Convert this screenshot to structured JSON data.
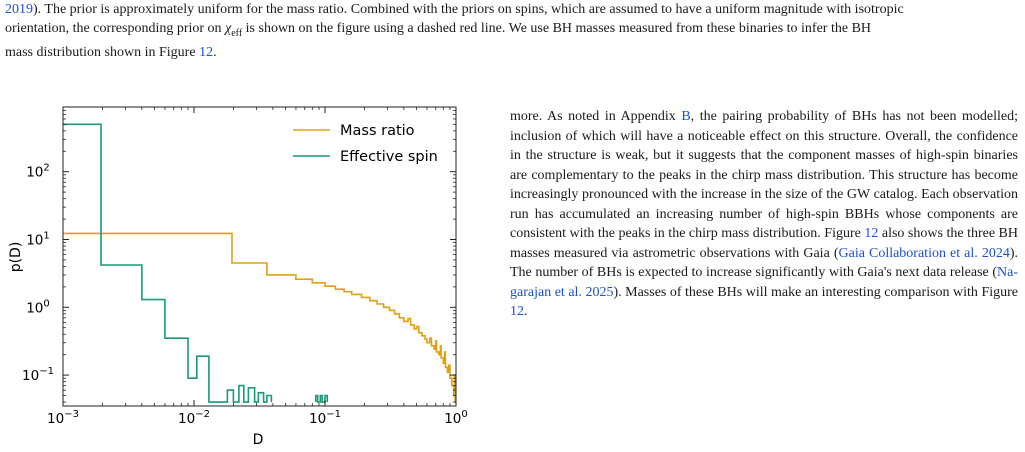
{
  "top_paragraph": {
    "line1_link": "2019",
    "line1_text": "). The prior is approximately uniform for the mass ratio. Combined with the priors on spins, which are assumed to have a uniform magnitude with isotropic",
    "line2_pre": "orientation, the corresponding prior on ",
    "chi_symbol": "χ",
    "chi_sub": "eff",
    "line2_post": " is shown on the figure using a dashed red line. We use BH masses measured from these binaries to infer the BH",
    "line3_pre": "mass distribution shown in Figure ",
    "line3_link": "12",
    "line3_post": "."
  },
  "right_paragraph": {
    "seg1": "more. As noted in Appendix ",
    "link_appendix": "B",
    "seg2": ", the pairing probability of BHs has not been modelled; inclusion of which will have a noticeable effect on this structure. Overall, the confidence in the structure is weak, but it suggests that the component masses of high-spin binaries are complementary to the peaks in the chirp mass distribution. This structure has become increasingly pronounced with the increase in the size of the GW catalog. Each observation run has accumulated an increasing number of high-spin BBHs whose components are consistent with the peaks in the chirp mass distribution. Figure ",
    "link_fig1": "12",
    "seg3": " also shows the three BH masses measured via astrometric observations with Gaia (",
    "link_gaia": "Gaia Collaboration et al. 2024",
    "seg4": "). The number of BHs is expected to increase significantly with Gaia's next data release (",
    "link_nagarajan_a": "Na-",
    "link_nagarajan_b": "garajan et al. 2025",
    "seg5": "). Masses of these BHs will make an interesting comparison with Figure ",
    "link_fig2": "12",
    "seg6": "."
  },
  "chart_data": {
    "type": "line",
    "xlabel": "D",
    "ylabel": "p(D)",
    "xscale": "log",
    "yscale": "log",
    "xlim": [
      0.001,
      1.0
    ],
    "ylim": [
      0.035,
      900
    ],
    "x_ticks": [
      {
        "base": "10",
        "exp": "−3",
        "value": 0.001
      },
      {
        "base": "10",
        "exp": "−2",
        "value": 0.01
      },
      {
        "base": "10",
        "exp": "−1",
        "value": 0.1
      },
      {
        "base": "10",
        "exp": "0",
        "value": 1
      }
    ],
    "y_ticks": [
      {
        "base": "10",
        "exp": "−1",
        "value": 0.1
      },
      {
        "base": "10",
        "exp": "0",
        "value": 1
      },
      {
        "base": "10",
        "exp": "1",
        "value": 10
      },
      {
        "base": "10",
        "exp": "2",
        "value": 100
      }
    ],
    "legend_position": "top-right",
    "series": [
      {
        "name": "Mass ratio",
        "color": "#e1a012",
        "steps": [
          [
            0.001,
            12.3
          ],
          [
            0.0195,
            12.3
          ],
          [
            0.0195,
            4.5
          ],
          [
            0.036,
            4.5
          ],
          [
            0.036,
            3.0
          ],
          [
            0.06,
            3.0
          ],
          [
            0.06,
            2.6
          ],
          [
            0.08,
            2.6
          ],
          [
            0.08,
            2.3
          ],
          [
            0.1,
            2.3
          ],
          [
            0.1,
            2.05
          ],
          [
            0.12,
            2.05
          ],
          [
            0.12,
            1.85
          ],
          [
            0.14,
            1.85
          ],
          [
            0.14,
            1.7
          ],
          [
            0.16,
            1.7
          ],
          [
            0.16,
            1.55
          ],
          [
            0.19,
            1.55
          ],
          [
            0.19,
            1.4
          ],
          [
            0.22,
            1.4
          ],
          [
            0.22,
            1.25
          ],
          [
            0.25,
            1.25
          ],
          [
            0.25,
            1.12
          ],
          [
            0.28,
            1.12
          ],
          [
            0.28,
            1.0
          ],
          [
            0.31,
            1.0
          ],
          [
            0.31,
            0.9
          ],
          [
            0.34,
            0.9
          ],
          [
            0.34,
            0.8
          ],
          [
            0.37,
            0.8
          ],
          [
            0.37,
            0.7
          ],
          [
            0.4,
            0.7
          ],
          [
            0.4,
            0.62
          ],
          [
            0.43,
            0.62
          ],
          [
            0.43,
            0.68
          ],
          [
            0.45,
            0.68
          ],
          [
            0.45,
            0.55
          ],
          [
            0.48,
            0.55
          ],
          [
            0.48,
            0.48
          ],
          [
            0.5,
            0.48
          ],
          [
            0.5,
            0.52
          ],
          [
            0.52,
            0.52
          ],
          [
            0.52,
            0.42
          ],
          [
            0.55,
            0.42
          ],
          [
            0.55,
            0.38
          ],
          [
            0.58,
            0.38
          ],
          [
            0.58,
            0.34
          ],
          [
            0.6,
            0.34
          ],
          [
            0.6,
            0.3
          ],
          [
            0.63,
            0.3
          ],
          [
            0.63,
            0.35
          ],
          [
            0.65,
            0.35
          ],
          [
            0.65,
            0.27
          ],
          [
            0.68,
            0.27
          ],
          [
            0.68,
            0.24
          ],
          [
            0.7,
            0.24
          ],
          [
            0.7,
            0.32
          ],
          [
            0.71,
            0.32
          ],
          [
            0.71,
            0.22
          ],
          [
            0.74,
            0.22
          ],
          [
            0.74,
            0.2
          ],
          [
            0.76,
            0.2
          ],
          [
            0.76,
            0.27
          ],
          [
            0.77,
            0.27
          ],
          [
            0.77,
            0.18
          ],
          [
            0.8,
            0.18
          ],
          [
            0.8,
            0.15
          ],
          [
            0.82,
            0.15
          ],
          [
            0.82,
            0.22
          ],
          [
            0.83,
            0.22
          ],
          [
            0.83,
            0.13
          ],
          [
            0.86,
            0.13
          ],
          [
            0.86,
            0.11
          ],
          [
            0.88,
            0.11
          ],
          [
            0.88,
            0.14
          ],
          [
            0.9,
            0.14
          ],
          [
            0.9,
            0.09
          ],
          [
            0.93,
            0.09
          ],
          [
            0.93,
            0.07
          ],
          [
            0.96,
            0.07
          ],
          [
            0.96,
            0.05
          ],
          [
            0.975,
            0.05
          ],
          [
            0.975,
            0.1
          ],
          [
            0.985,
            0.1
          ],
          [
            0.985,
            0.04
          ],
          [
            1.0,
            0.04
          ]
        ]
      },
      {
        "name": "Effective spin",
        "color": "#1a9a78",
        "steps": [
          [
            0.001,
            500
          ],
          [
            0.00195,
            500
          ],
          [
            0.00195,
            4.2
          ],
          [
            0.004,
            4.2
          ],
          [
            0.004,
            1.3
          ],
          [
            0.006,
            1.3
          ],
          [
            0.006,
            0.35
          ],
          [
            0.009,
            0.35
          ],
          [
            0.009,
            0.09
          ],
          [
            0.0105,
            0.09
          ],
          [
            0.0105,
            0.19
          ],
          [
            0.013,
            0.19
          ],
          [
            0.013,
            0.04
          ],
          [
            0.018,
            0.04
          ],
          [
            0.018,
            0.06
          ],
          [
            0.02,
            0.06
          ],
          [
            0.02,
            0.04
          ],
          [
            0.022,
            0.04
          ],
          [
            0.022,
            0.07
          ],
          [
            0.024,
            0.07
          ],
          [
            0.024,
            0.04
          ],
          [
            0.026,
            0.04
          ],
          [
            0.026,
            0.065
          ],
          [
            0.029,
            0.065
          ],
          [
            0.029,
            0.04
          ],
          [
            0.031,
            0.04
          ],
          [
            0.031,
            0.055
          ],
          [
            0.034,
            0.055
          ],
          [
            0.034,
            0.04
          ],
          [
            0.036,
            0.04
          ],
          [
            0.036,
            0.05
          ],
          [
            0.039,
            0.05
          ],
          [
            0.039,
            0.04
          ],
          null,
          [
            0.085,
            0.04
          ],
          [
            0.085,
            0.05
          ],
          [
            0.088,
            0.05
          ],
          [
            0.088,
            0.04
          ],
          [
            0.092,
            0.04
          ],
          [
            0.092,
            0.05
          ],
          [
            0.095,
            0.05
          ],
          [
            0.095,
            0.04
          ],
          [
            0.1,
            0.04
          ],
          [
            0.1,
            0.05
          ],
          [
            0.104,
            0.05
          ],
          [
            0.104,
            0.04
          ]
        ]
      }
    ]
  }
}
